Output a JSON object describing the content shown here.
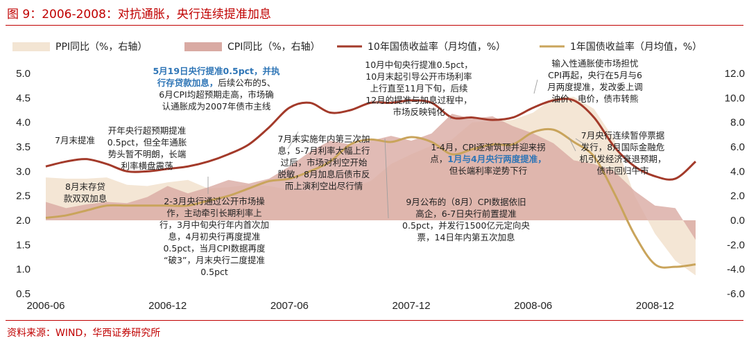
{
  "figure": {
    "title": "图 9：2006-2008：对抗通胀，央行连续提准加息",
    "source": "资料来源：WIND，华西证券研究所"
  },
  "colors": {
    "title_red": "#c00000",
    "ppi_area": "#f3e5d3",
    "cpi_area": "#d9aaa3",
    "yield10_line": "#a33a2a",
    "yield1_line": "#c9a45b",
    "highlight_text": "#2e75b6"
  },
  "chart_data": {
    "type": "line",
    "x": [
      "2006-06",
      "2006-07",
      "2006-08",
      "2006-09",
      "2006-10",
      "2006-11",
      "2006-12",
      "2007-01",
      "2007-02",
      "2007-03",
      "2007-04",
      "2007-05",
      "2007-06",
      "2007-07",
      "2007-08",
      "2007-09",
      "2007-10",
      "2007-11",
      "2007-12",
      "2008-01",
      "2008-02",
      "2008-03",
      "2008-04",
      "2008-05",
      "2008-06",
      "2008-07",
      "2008-08",
      "2008-09",
      "2008-10",
      "2008-11",
      "2008-12",
      "2009-01",
      "2009-02"
    ],
    "x_tick_labels": [
      "2006-06",
      "2006-12",
      "2007-06",
      "2007-12",
      "2008-06",
      "2008-12"
    ],
    "ylim_left": [
      0.5,
      5.0
    ],
    "yticks_left": [
      "5.0",
      "4.5",
      "4.0",
      "3.5",
      "3.0",
      "2.5",
      "2.0",
      "1.5",
      "1.0",
      "0.5"
    ],
    "ylim_right": [
      -6.0,
      12.0
    ],
    "yticks_right": [
      "12.0",
      "10.0",
      "8.0",
      "6.0",
      "4.0",
      "2.0",
      "0.0",
      "-2.0",
      "-4.0",
      "-6.0"
    ],
    "legend_position": "top",
    "series": [
      {
        "name": "PPI同比（%，右轴）",
        "type": "area",
        "axis": "right",
        "values": [
          3.5,
          3.4,
          3.4,
          3.5,
          2.9,
          2.8,
          3.1,
          3.3,
          2.6,
          2.7,
          2.9,
          2.8,
          2.5,
          2.4,
          2.6,
          2.7,
          3.2,
          4.6,
          5.4,
          6.1,
          6.6,
          8.0,
          8.1,
          8.2,
          8.8,
          10.0,
          10.1,
          9.1,
          6.6,
          2.0,
          -1.1,
          -3.3,
          -4.5
        ]
      },
      {
        "name": "CPI同比（%，右轴）",
        "type": "area",
        "axis": "right",
        "values": [
          1.5,
          1.0,
          1.3,
          1.5,
          1.4,
          1.9,
          2.8,
          2.2,
          2.7,
          3.3,
          3.0,
          3.4,
          4.4,
          5.6,
          6.5,
          6.2,
          6.5,
          6.9,
          6.5,
          7.1,
          8.7,
          8.3,
          8.5,
          7.7,
          7.1,
          6.3,
          4.9,
          4.6,
          4.0,
          2.4,
          1.2,
          1.0,
          -1.6
        ]
      },
      {
        "name": "10年国债收益率（月均值，%）",
        "type": "line",
        "axis": "left",
        "values": [
          3.1,
          3.2,
          3.25,
          3.15,
          3.0,
          3.0,
          3.05,
          3.1,
          3.2,
          3.35,
          3.55,
          3.9,
          4.3,
          4.4,
          4.2,
          4.25,
          4.4,
          4.4,
          4.45,
          4.4,
          4.1,
          4.1,
          4.05,
          4.1,
          4.3,
          4.45,
          4.45,
          4.1,
          3.5,
          3.1,
          2.9,
          2.85,
          3.2
        ]
      },
      {
        "name": "1年国债收益率（月均值，%）",
        "type": "line",
        "axis": "left",
        "values": [
          2.05,
          2.1,
          2.2,
          2.3,
          2.3,
          2.3,
          2.3,
          2.3,
          2.4,
          2.5,
          2.65,
          2.8,
          2.85,
          3.0,
          3.2,
          3.55,
          3.65,
          3.6,
          3.7,
          3.6,
          3.35,
          3.45,
          3.55,
          3.55,
          3.8,
          3.85,
          3.6,
          3.3,
          2.55,
          1.7,
          1.1,
          1.05,
          1.1
        ]
      }
    ]
  },
  "annotations": [
    {
      "id": "a1",
      "lines": [
        {
          "t": "7月末提准"
        }
      ]
    },
    {
      "id": "a2",
      "lines": [
        {
          "t": "8月末存贷"
        },
        {
          "t": "款双双加息"
        }
      ]
    },
    {
      "id": "a3",
      "lines": [
        {
          "t": "开年央行超预期提准"
        },
        {
          "t": "0.5pct，但全年通胀"
        },
        {
          "t": "势头暂不明朗，长端"
        },
        {
          "t": "利率横盘震荡"
        }
      ]
    },
    {
      "id": "a4",
      "lines": [
        {
          "t": "5月19日央行提准0.5pct，并执",
          "hl": true
        },
        {
          "t": "行存贷款加息，",
          "hl": true,
          "rest": "后续公布的5、"
        },
        {
          "t": "6月CPI均超预期走高，市场确"
        },
        {
          "t": "认通胀成为2007年债市主线"
        }
      ]
    },
    {
      "id": "a5",
      "lines": [
        {
          "t": "2-3月央行通过公开市场操"
        },
        {
          "t": "作，主动牵引长期利率上"
        },
        {
          "t": "行，3月中旬央行年内首次加"
        },
        {
          "t": "息，4月初央行再度提准"
        },
        {
          "t": "0.5pct，当月CPI数据再度"
        },
        {
          "t": "“破3”，月末央行二度提准"
        },
        {
          "t": "0.5pct"
        }
      ]
    },
    {
      "id": "a6",
      "lines": [
        {
          "t": "7月末实施年内第三次加"
        },
        {
          "t": "息，5-7月利率大幅上行"
        },
        {
          "t": "过后，市场对利空开始"
        },
        {
          "t": "脱敏，8月加息后债市反"
        },
        {
          "t": "而上演利空出尽行情"
        }
      ]
    },
    {
      "id": "a7",
      "lines": [
        {
          "t": "10月中旬央行提准0.5pct，"
        },
        {
          "t": "10月末起引导公开市场利率"
        },
        {
          "t": "上行直至11月下旬，后续"
        },
        {
          "t": "12月的提准与加息过程中，"
        },
        {
          "t": "市场反映钝化"
        }
      ]
    },
    {
      "id": "a8",
      "lines": [
        {
          "t": "9月公布的（8月）CPI数据依旧"
        },
        {
          "t": "高企，6-7日央行前置提准"
        },
        {
          "t": "0.5pct，并发行1500亿元定向央"
        },
        {
          "t": "票，14日年内第五次加息"
        }
      ]
    },
    {
      "id": "a9",
      "lines": [
        {
          "t": "1-4月，CPI逐渐筑顶并迎来拐"
        },
        {
          "t": "点，",
          "rest_hl": "1月与4月央行两度提准，"
        },
        {
          "t": "但长端利率逆势下行"
        }
      ]
    },
    {
      "id": "a10",
      "lines": [
        {
          "t": "输入性通胀使市场担忧"
        },
        {
          "t": "CPI再起，央行在5月与6"
        },
        {
          "t": "月两度提准，发改委上调"
        },
        {
          "t": "油价、电价，债市转熊"
        }
      ]
    },
    {
      "id": "a11",
      "lines": [
        {
          "t": "7月央行连续暂停票据"
        },
        {
          "t": "发行，8月国际金融危"
        },
        {
          "t": "机引发经济衰退预期，"
        },
        {
          "t": "债市回归牛市"
        }
      ]
    }
  ]
}
